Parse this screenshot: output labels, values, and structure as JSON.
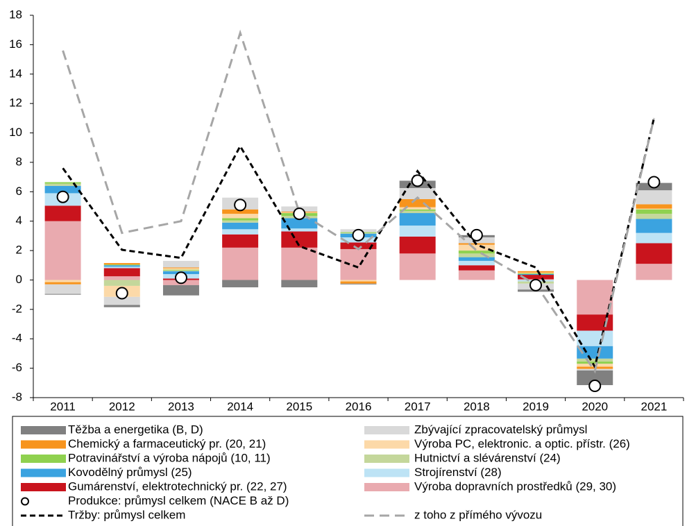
{
  "chart_data": {
    "type": "bar",
    "stacked": true,
    "grid": false,
    "categories": [
      "2011",
      "2012",
      "2013",
      "2014",
      "2015",
      "2016",
      "2017",
      "2018",
      "2019",
      "2020",
      "2021"
    ],
    "ylim": [
      -8,
      18
    ],
    "yticks": [
      -8,
      -6,
      -4,
      -2,
      0,
      2,
      4,
      6,
      8,
      10,
      12,
      14,
      16,
      18
    ],
    "series": [
      {
        "name": "Výroba dopravních prostředků (29, 30)",
        "type": "bar",
        "color": "#e9aaaf",
        "values": [
          4.0,
          0.25,
          -0.35,
          2.2,
          2.2,
          2.1,
          1.8,
          0.65,
          0.05,
          -2.35,
          1.1
        ]
      },
      {
        "name": "Gumárenství, elektrotechnický pr. (22, 27)",
        "type": "bar",
        "color": "#c9141d",
        "values": [
          1.05,
          0.55,
          0.1,
          0.9,
          1.1,
          0.45,
          1.15,
          0.35,
          0.3,
          -1.1,
          1.4
        ]
      },
      {
        "name": "Strojírenství (28)",
        "type": "bar",
        "color": "#bde3f5",
        "values": [
          0.85,
          0.1,
          0.3,
          0.35,
          0.2,
          0.35,
          0.75,
          0.3,
          -0.1,
          -1.05,
          0.7
        ]
      },
      {
        "name": "Kovodělný průmysl (25)",
        "type": "bar",
        "color": "#3ba3e0",
        "values": [
          0.5,
          0.1,
          0.2,
          0.45,
          0.7,
          0.25,
          0.85,
          0.25,
          0.05,
          -0.85,
          0.95
        ]
      },
      {
        "name": "Hutnictví a slévárenství (24)",
        "type": "bar",
        "color": "#c4d79b",
        "values": [
          0.15,
          -0.4,
          0.05,
          0.15,
          0.15,
          0.05,
          0.15,
          0.25,
          -0.15,
          -0.2,
          0.35
        ]
      },
      {
        "name": "Potravinářství a výroba nápojů (10, 11)",
        "type": "bar",
        "color": "#8fd14f",
        "values": [
          0.1,
          0.05,
          0.05,
          0.15,
          0.2,
          0.05,
          0.1,
          0.2,
          0.05,
          -0.15,
          0.3
        ]
      },
      {
        "name": "Výroba PC, elektronic. a optic. přístr. (26)",
        "type": "bar",
        "color": "#fcd9a8",
        "values": [
          -0.15,
          -0.75,
          0.1,
          0.3,
          0.05,
          -0.1,
          0.15,
          0.4,
          0.05,
          -0.2,
          0.05
        ]
      },
      {
        "name": "Chemický a farmaceutický pr. (20, 21)",
        "type": "bar",
        "color": "#f7941d",
        "values": [
          -0.15,
          0.1,
          0.05,
          0.3,
          0.05,
          -0.15,
          0.55,
          0.1,
          0.1,
          -0.15,
          0.3
        ]
      },
      {
        "name": "Zbývající zpracovatelský průmysl",
        "type": "bar",
        "color": "#d9d9d9",
        "values": [
          -0.65,
          -0.55,
          0.45,
          0.8,
          0.35,
          0.2,
          0.75,
          0.4,
          -0.4,
          -0.1,
          0.95
        ]
      },
      {
        "name": "Těžba a energetika (B, D)",
        "type": "bar",
        "color": "#808080",
        "values": [
          -0.05,
          -0.15,
          -0.7,
          -0.5,
          -0.5,
          -0.05,
          0.5,
          0.15,
          -0.15,
          -1.0,
          0.5
        ]
      },
      {
        "name": "Produkce: průmysl celkem (NACE B až D)",
        "type": "scatter",
        "color": "#000000",
        "values": [
          5.65,
          -0.9,
          0.15,
          5.1,
          4.5,
          3.05,
          6.75,
          3.05,
          -0.35,
          -7.2,
          6.65
        ]
      },
      {
        "name": "Tržby: průmysl celkem",
        "type": "line",
        "color": "#000000",
        "values": [
          7.6,
          2.05,
          1.5,
          9.1,
          2.3,
          0.85,
          7.4,
          2.4,
          0.85,
          -5.9,
          11.0
        ]
      },
      {
        "name": "z toho z přímého vývozu",
        "type": "line",
        "color": "#a6a6a6",
        "values": [
          15.6,
          3.2,
          4.0,
          16.8,
          4.6,
          2.1,
          5.6,
          2.0,
          -0.3,
          -6.2,
          11.0
        ]
      }
    ]
  }
}
